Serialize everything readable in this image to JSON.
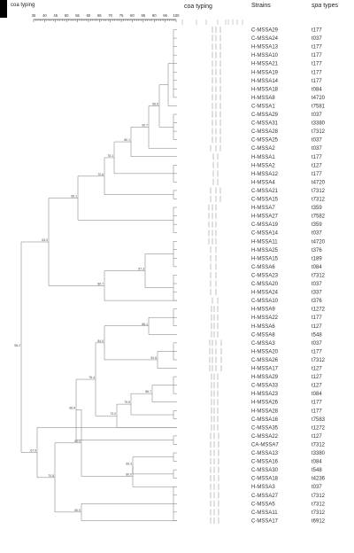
{
  "header": {
    "scale_title": "coa typing",
    "scale_ticks": [
      "35",
      "40",
      "45",
      "50",
      "55",
      "60",
      "65",
      "70",
      "75",
      "80",
      "85",
      "90",
      "95",
      "100"
    ],
    "coa_title": "coa typing",
    "strains_title": "Strains",
    "spa_title_italic": "spa",
    "spa_title_rest": " types"
  },
  "leaves": [
    {
      "strain": "C-MSSA29",
      "spa": "t177"
    },
    {
      "strain": "C-MSSA24",
      "spa": "t037"
    },
    {
      "strain": "H-MSSA13",
      "spa": "t177"
    },
    {
      "strain": "H-MSSA10",
      "spa": "t177"
    },
    {
      "strain": "H-MSSA21",
      "spa": "t177"
    },
    {
      "strain": "H-MSSA19",
      "spa": "t177"
    },
    {
      "strain": "H-MSSA14",
      "spa": "t177"
    },
    {
      "strain": "H-MSSA18",
      "spa": "t084"
    },
    {
      "strain": "H-MSSA8",
      "spa": "t4720"
    },
    {
      "strain": "C-MSSA1",
      "spa": "t7581"
    },
    {
      "strain": "C-MSSA29",
      "spa": "t037"
    },
    {
      "strain": "C-MSSA31",
      "spa": "t3380"
    },
    {
      "strain": "C-MSSA28",
      "spa": "t7312"
    },
    {
      "strain": "C-MSSA25",
      "spa": "t037"
    },
    {
      "strain": "C-MSSA2",
      "spa": "t037"
    },
    {
      "strain": "H-MSSA1",
      "spa": "t177"
    },
    {
      "strain": "H-MSSA2",
      "spa": "t127"
    },
    {
      "strain": "H-MSSA12",
      "spa": "t177"
    },
    {
      "strain": "H-MSSA4",
      "spa": "t4720"
    },
    {
      "strain": "C-MSSA21",
      "spa": "t7312"
    },
    {
      "strain": "C-MSSA15",
      "spa": "t7312"
    },
    {
      "strain": "H-MSSA7",
      "spa": "t359"
    },
    {
      "strain": "H-MSSA27",
      "spa": "t7582"
    },
    {
      "strain": "C-MSSA19",
      "spa": "t359"
    },
    {
      "strain": "C-MSSA14",
      "spa": "t037"
    },
    {
      "strain": "H-MSSA11",
      "spa": "t4720"
    },
    {
      "strain": "H-MSSA25",
      "spa": "t376"
    },
    {
      "strain": "H-MSSA15",
      "spa": "t189"
    },
    {
      "strain": "C-MSSA6",
      "spa": "t084"
    },
    {
      "strain": "C-MSSA23",
      "spa": "t7312"
    },
    {
      "strain": "C-MSSA20",
      "spa": "t037"
    },
    {
      "strain": "H-MSSA24",
      "spa": "t337"
    },
    {
      "strain": "C-MSSA10",
      "spa": "t376"
    },
    {
      "strain": "H-MSSA9",
      "spa": "t1272"
    },
    {
      "strain": "H-MSSA22",
      "spa": "t177"
    },
    {
      "strain": "H-MSSA6",
      "spa": "t127"
    },
    {
      "strain": "C-MSSA8",
      "spa": "t548"
    },
    {
      "strain": "C-MSSA3",
      "spa": "t037"
    },
    {
      "strain": "H-MSSA20",
      "spa": "t177"
    },
    {
      "strain": "C-MSSA26",
      "spa": "t7312"
    },
    {
      "strain": "H-MSSA17",
      "spa": "t127"
    },
    {
      "strain": "H-MSSA29",
      "spa": "t127"
    },
    {
      "strain": "C-MSSA33",
      "spa": "t127"
    },
    {
      "strain": "H-MSSA23",
      "spa": "t084"
    },
    {
      "strain": "H-MSSA26",
      "spa": "t177"
    },
    {
      "strain": "H-MSSA28",
      "spa": "t177"
    },
    {
      "strain": "C-MSSA16",
      "spa": "t7583"
    },
    {
      "strain": "C-MSSA35",
      "spa": "t1272"
    },
    {
      "strain": "C-MSSA22",
      "spa": "t127"
    },
    {
      "strain": "CA-MSSA7",
      "spa": "t7312"
    },
    {
      "strain": "C-MSSA13",
      "spa": "t3380"
    },
    {
      "strain": "C-MSSA16",
      "spa": "t084"
    },
    {
      "strain": "C-MSSA30",
      "spa": "t548"
    },
    {
      "strain": "C-MSSA18",
      "spa": "t4236"
    },
    {
      "strain": "H-MSSA3",
      "spa": "t037"
    },
    {
      "strain": "C-MSSA27",
      "spa": "t7312"
    },
    {
      "strain": "C-MSSA5",
      "spa": "t7312"
    },
    {
      "strain": "C-MSSA11",
      "spa": "t7312"
    },
    {
      "strain": "C-MSSA17",
      "spa": "t6912"
    }
  ],
  "node_labels": [
    "86.8",
    "90.7",
    "80.1",
    "75.1",
    "70.6",
    "66.1",
    "63.0",
    "56.2",
    "87.3",
    "86.7",
    "86.1",
    "92.6",
    "84.0",
    "86.7",
    "79.8",
    "73.0",
    "76.4",
    "68.8",
    "69.3",
    "80.0",
    "80.0",
    "80.0",
    "70.8",
    "49.8",
    "67.9",
    "68.3",
    "57.9",
    "80.1"
  ],
  "colors": {
    "line": "#777777",
    "text": "#333333",
    "band": "#999999"
  }
}
